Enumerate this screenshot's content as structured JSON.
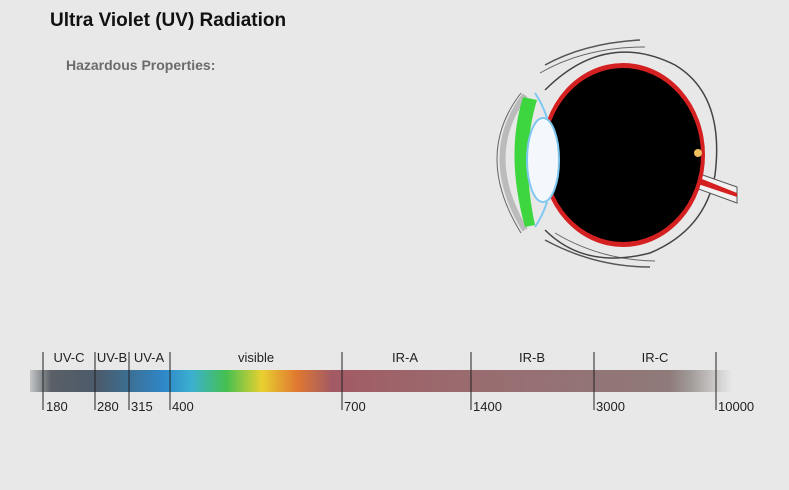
{
  "header": {
    "title": "Ultra Violet (UV) Radiation",
    "subtitle": "Hazardous Properties:"
  },
  "bands": [
    {
      "label": "UV-C"
    },
    {
      "label": "UV-B"
    },
    {
      "label": "UV-A"
    },
    {
      "label": "visible"
    },
    {
      "label": "IR-A"
    },
    {
      "label": "IR-B"
    },
    {
      "label": "IR-C"
    }
  ],
  "wavelength_ticks": [
    "180",
    "280",
    "315",
    "400",
    "700",
    "1400",
    "3000",
    "10000"
  ],
  "colors": {
    "background": "#e8e8e8",
    "retina": "#d42020",
    "cornea_green": "#3ed63e",
    "lens_blue": "#7ec8f0",
    "infrared_band": "#9a6a6e"
  }
}
